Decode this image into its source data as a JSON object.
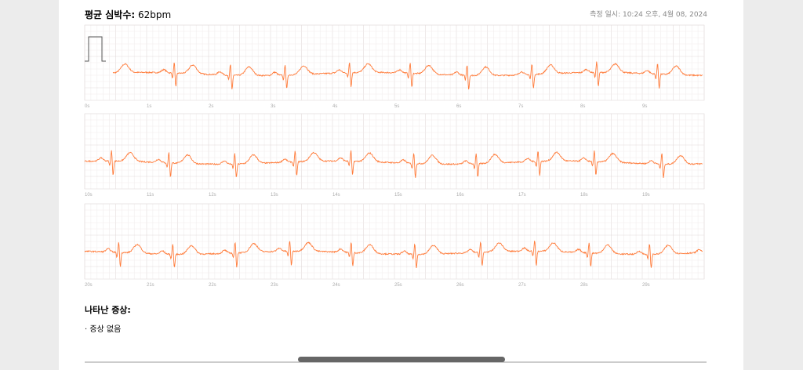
{
  "header": {
    "label": "평균 심박수:",
    "value": "62bpm",
    "timestamp": "측정 일시: 10:24 오후, 4월 08, 2024"
  },
  "strips": [
    {
      "ticks": [
        "0s",
        "1s",
        "2s",
        "3s",
        "4s",
        "5s",
        "6s",
        "7s",
        "8s",
        "9s"
      ]
    },
    {
      "ticks": [
        "10s",
        "11s",
        "12s",
        "13s",
        "14s",
        "15s",
        "16s",
        "17s",
        "18s",
        "19s"
      ]
    },
    {
      "ticks": [
        "20s",
        "21s",
        "22s",
        "23s",
        "24s",
        "25s",
        "26s",
        "27s",
        "28s",
        "29s"
      ]
    }
  ],
  "symptoms": {
    "title": "나타난 증상:",
    "items": [
      "· 증상 없음"
    ]
  }
}
